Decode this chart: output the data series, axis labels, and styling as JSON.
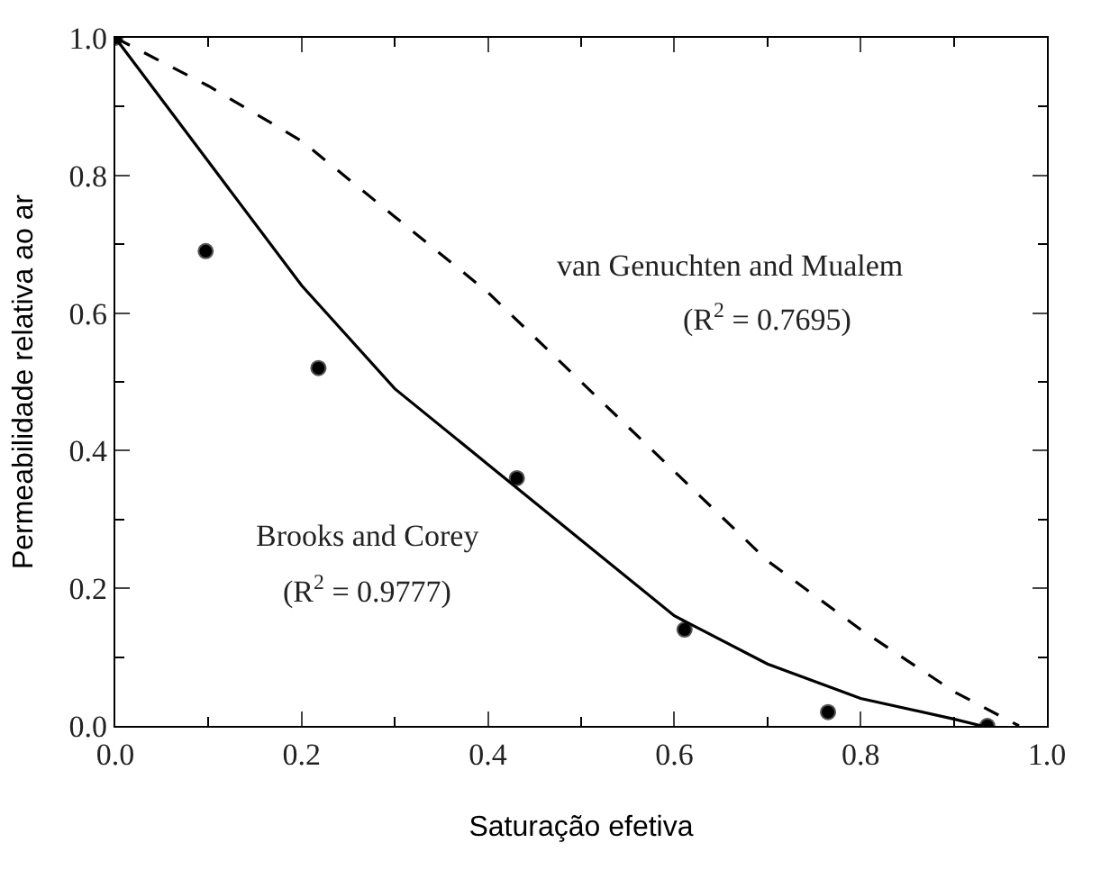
{
  "chart_data": {
    "type": "line",
    "xlabel": "Saturação efetiva",
    "ylabel": "Permeabilidade relativa ao ar",
    "xlim": [
      0,
      1
    ],
    "ylim": [
      0,
      1
    ],
    "xticks": [
      {
        "value": 0,
        "label": "0.0"
      },
      {
        "value": 0.2,
        "label": "0.2"
      },
      {
        "value": 0.4,
        "label": "0.4"
      },
      {
        "value": 0.6,
        "label": "0.6"
      },
      {
        "value": 0.8,
        "label": "0.8"
      },
      {
        "value": 1,
        "label": "1.0"
      }
    ],
    "yticks": [
      {
        "value": 0,
        "label": "0.0"
      },
      {
        "value": 0.2,
        "label": "0.2"
      },
      {
        "value": 0.4,
        "label": "0.4"
      },
      {
        "value": 0.6,
        "label": "0.6"
      },
      {
        "value": 0.8,
        "label": "0.8"
      },
      {
        "value": 1,
        "label": "1.0"
      }
    ],
    "series": [
      {
        "type": "scatter",
        "marker": "circle",
        "color": "#000000",
        "x": [
          0,
          0.097,
          0.218,
          0.431,
          0.611,
          0.765,
          0.936
        ],
        "values": [
          1.0,
          0.69,
          0.52,
          0.36,
          0.14,
          0.02,
          0.0
        ]
      },
      {
        "line_style": "solid",
        "color": "#000000",
        "x": [
          0,
          0.1,
          0.2,
          0.3,
          0.4,
          0.5,
          0.6,
          0.7,
          0.8,
          0.9,
          0.93
        ],
        "values": [
          1.0,
          0.82,
          0.64,
          0.49,
          0.38,
          0.27,
          0.16,
          0.09,
          0.04,
          0.01,
          0.0
        ]
      },
      {
        "line_style": "dashed",
        "color": "#000000",
        "x": [
          0,
          0.1,
          0.2,
          0.3,
          0.4,
          0.5,
          0.6,
          0.7,
          0.8,
          0.9,
          0.97
        ],
        "values": [
          1.0,
          0.93,
          0.85,
          0.74,
          0.63,
          0.5,
          0.37,
          0.24,
          0.14,
          0.05,
          0.0
        ]
      }
    ],
    "annotations": [
      "van Genuchten and Mualem",
      "(R$^{2}$ = 0.7695)",
      "Brooks and Corey",
      "(R$^{2}$ = 0.9777)"
    ]
  }
}
